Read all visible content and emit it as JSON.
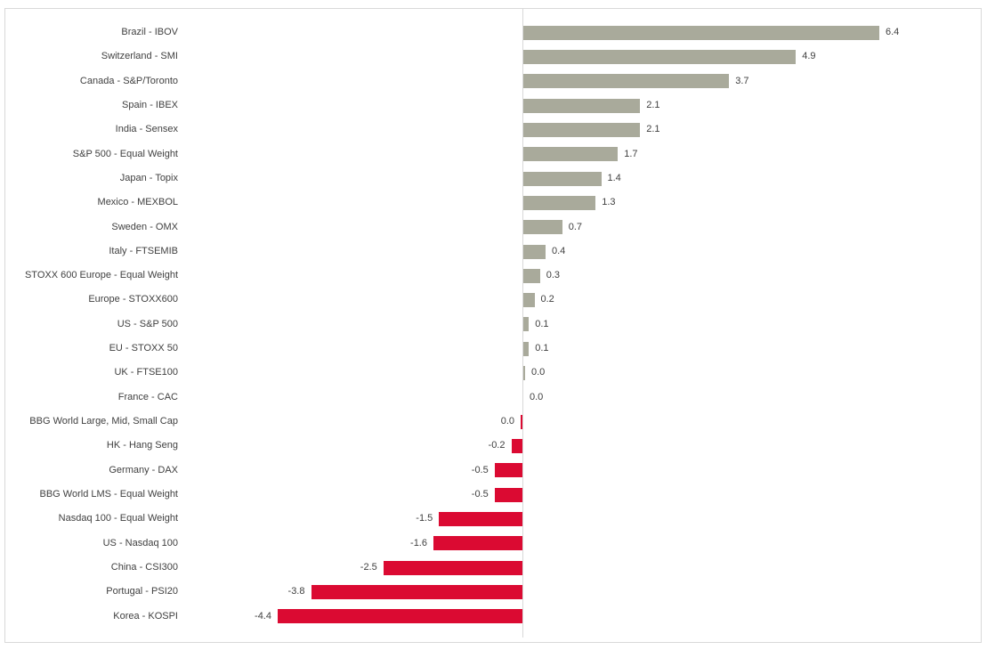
{
  "chart_data": {
    "type": "bar",
    "orientation": "horizontal",
    "title": "",
    "xlabel": "",
    "ylabel": "",
    "grid": false,
    "legend": "none",
    "zero_axis_line": true,
    "colors": {
      "positive_bar": "#a9aa9b",
      "negative_bar": "#db0a32",
      "axis_line": "#d9d9d9",
      "frame_border": "#d9d9d9",
      "label_text": "#404040"
    },
    "bars": [
      {
        "category": "Brazil - IBOV",
        "value": 6.4,
        "label": "6.4",
        "direction": "positive",
        "sliver": false
      },
      {
        "category": "Switzerland - SMI",
        "value": 4.9,
        "label": "4.9",
        "direction": "positive",
        "sliver": false
      },
      {
        "category": "Canada - S&P/Toronto",
        "value": 3.7,
        "label": "3.7",
        "direction": "positive",
        "sliver": false
      },
      {
        "category": "Spain - IBEX",
        "value": 2.1,
        "label": "2.1",
        "direction": "positive",
        "sliver": false
      },
      {
        "category": "India - Sensex",
        "value": 2.1,
        "label": "2.1",
        "direction": "positive",
        "sliver": false
      },
      {
        "category": "S&P 500 - Equal Weight",
        "value": 1.7,
        "label": "1.7",
        "direction": "positive",
        "sliver": false
      },
      {
        "category": "Japan - Topix",
        "value": 1.4,
        "label": "1.4",
        "direction": "positive",
        "sliver": false
      },
      {
        "category": "Mexico - MEXBOL",
        "value": 1.3,
        "label": "1.3",
        "direction": "positive",
        "sliver": false
      },
      {
        "category": "Sweden - OMX",
        "value": 0.7,
        "label": "0.7",
        "direction": "positive",
        "sliver": false
      },
      {
        "category": "Italy - FTSEMIB",
        "value": 0.4,
        "label": "0.4",
        "direction": "positive",
        "sliver": false
      },
      {
        "category": "STOXX 600 Europe - Equal Weight",
        "value": 0.3,
        "label": "0.3",
        "direction": "positive",
        "sliver": false
      },
      {
        "category": "Europe - STOXX600",
        "value": 0.2,
        "label": "0.2",
        "direction": "positive",
        "sliver": false
      },
      {
        "category": "US - S&P 500",
        "value": 0.1,
        "label": "0.1",
        "direction": "positive",
        "sliver": false
      },
      {
        "category": "EU - STOXX 50",
        "value": 0.1,
        "label": "0.1",
        "direction": "positive",
        "sliver": false
      },
      {
        "category": "UK - FTSE100",
        "value": 0.0,
        "label": "0.0",
        "direction": "positive",
        "sliver": true
      },
      {
        "category": "France - CAC",
        "value": 0.0,
        "label": "0.0",
        "direction": "positive",
        "sliver": false
      },
      {
        "category": "BBG World Large, Mid, Small Cap",
        "value": 0.0,
        "label": "0.0",
        "direction": "negative",
        "sliver": true
      },
      {
        "category": "HK - Hang Seng",
        "value": -0.2,
        "label": "-0.2",
        "direction": "negative",
        "sliver": false
      },
      {
        "category": "Germany - DAX",
        "value": -0.5,
        "label": "-0.5",
        "direction": "negative",
        "sliver": false
      },
      {
        "category": "BBG World LMS - Equal Weight",
        "value": -0.5,
        "label": "-0.5",
        "direction": "negative",
        "sliver": false
      },
      {
        "category": "Nasdaq 100 - Equal Weight",
        "value": -1.5,
        "label": "-1.5",
        "direction": "negative",
        "sliver": false
      },
      {
        "category": "US - Nasdaq 100",
        "value": -1.6,
        "label": "-1.6",
        "direction": "negative",
        "sliver": false
      },
      {
        "category": "China - CSI300",
        "value": -2.5,
        "label": "-2.5",
        "direction": "negative",
        "sliver": false
      },
      {
        "category": "Portugal - PSI20",
        "value": -3.8,
        "label": "-3.8",
        "direction": "negative",
        "sliver": false
      },
      {
        "category": "Korea - KOSPI",
        "value": -4.4,
        "label": "-4.4",
        "direction": "negative",
        "sliver": false
      }
    ]
  }
}
